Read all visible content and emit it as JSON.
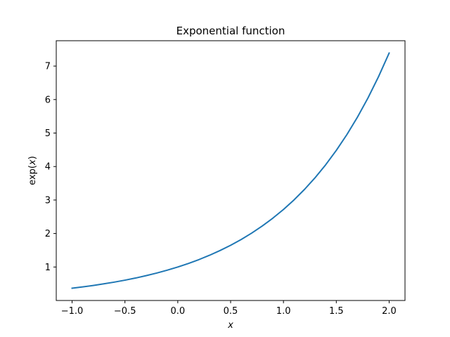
{
  "chart_data": {
    "type": "line",
    "title": "Exponential function",
    "xlabel_base": "x",
    "ylabel_prefix": "exp(",
    "ylabel_var": "x",
    "ylabel_suffix": ")",
    "xlim": [
      -1.15,
      2.15
    ],
    "ylim": [
      0.0,
      7.757
    ],
    "grid": false,
    "x_ticks": [
      {
        "value": -1.0,
        "label": "−1.0"
      },
      {
        "value": -0.5,
        "label": "−0.5"
      },
      {
        "value": 0.0,
        "label": "0.0"
      },
      {
        "value": 0.5,
        "label": "0.5"
      },
      {
        "value": 1.0,
        "label": "1.0"
      },
      {
        "value": 1.5,
        "label": "1.5"
      },
      {
        "value": 2.0,
        "label": "2.0"
      }
    ],
    "y_ticks": [
      {
        "value": 1,
        "label": "1"
      },
      {
        "value": 2,
        "label": "2"
      },
      {
        "value": 3,
        "label": "3"
      },
      {
        "value": 4,
        "label": "4"
      },
      {
        "value": 5,
        "label": "5"
      },
      {
        "value": 6,
        "label": "6"
      },
      {
        "value": 7,
        "label": "7"
      }
    ],
    "series": [
      {
        "color": "#1f77b4",
        "x": [
          -1.0,
          -0.9,
          -0.8,
          -0.7,
          -0.6,
          -0.5,
          -0.4,
          -0.3,
          -0.2,
          -0.1,
          0.0,
          0.1,
          0.2,
          0.3,
          0.4,
          0.5,
          0.6,
          0.7,
          0.8,
          0.9,
          1.0,
          1.1,
          1.2,
          1.3,
          1.4,
          1.5,
          1.6,
          1.7,
          1.8,
          1.9,
          2.0
        ],
        "y": [
          0.368,
          0.407,
          0.449,
          0.497,
          0.549,
          0.607,
          0.67,
          0.741,
          0.819,
          0.905,
          1.0,
          1.105,
          1.221,
          1.35,
          1.492,
          1.649,
          1.822,
          2.014,
          2.226,
          2.46,
          2.718,
          3.004,
          3.32,
          3.669,
          4.055,
          4.482,
          4.953,
          5.474,
          6.05,
          6.686,
          7.389
        ]
      }
    ]
  }
}
